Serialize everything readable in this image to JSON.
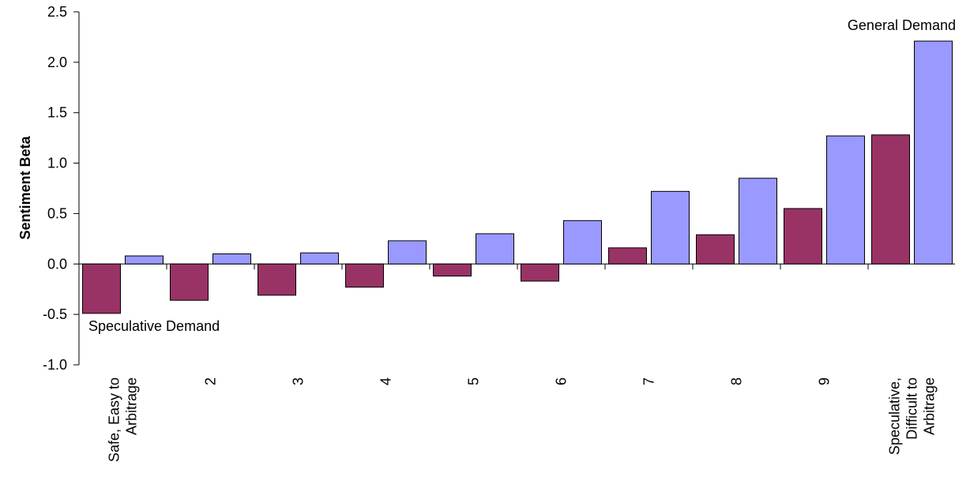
{
  "chart_data": {
    "type": "bar",
    "title": "",
    "xlabel": "",
    "ylabel": "Sentiment Beta",
    "ylim": [
      -1.0,
      2.5
    ],
    "yticks": [
      "-1.0",
      "-0.5",
      "0.0",
      "0.5",
      "1.0",
      "1.5",
      "2.0",
      "2.5"
    ],
    "categories": [
      [
        "Safe, Easy to",
        "Arbitrage"
      ],
      [
        "2"
      ],
      [
        "3"
      ],
      [
        "4"
      ],
      [
        "5"
      ],
      [
        "6"
      ],
      [
        "7"
      ],
      [
        "8"
      ],
      [
        "9"
      ],
      [
        "Speculative,",
        "Difficult to",
        "Arbitrage"
      ]
    ],
    "series": [
      {
        "name": "Speculative Demand",
        "color": "#993366",
        "values": [
          -0.49,
          -0.36,
          -0.31,
          -0.23,
          -0.12,
          -0.17,
          0.16,
          0.29,
          0.55,
          1.28
        ]
      },
      {
        "name": "General Demand",
        "color": "#9999ff",
        "values": [
          0.08,
          0.1,
          0.11,
          0.23,
          0.3,
          0.43,
          0.72,
          0.85,
          1.27,
          2.21
        ]
      }
    ],
    "annotations": [
      {
        "text": "General Demand",
        "series": 1,
        "category": 9,
        "position": "above"
      },
      {
        "text": "Speculative Demand",
        "series": 0,
        "category": 0,
        "position": "below"
      }
    ],
    "grid": false,
    "legend": "none"
  }
}
